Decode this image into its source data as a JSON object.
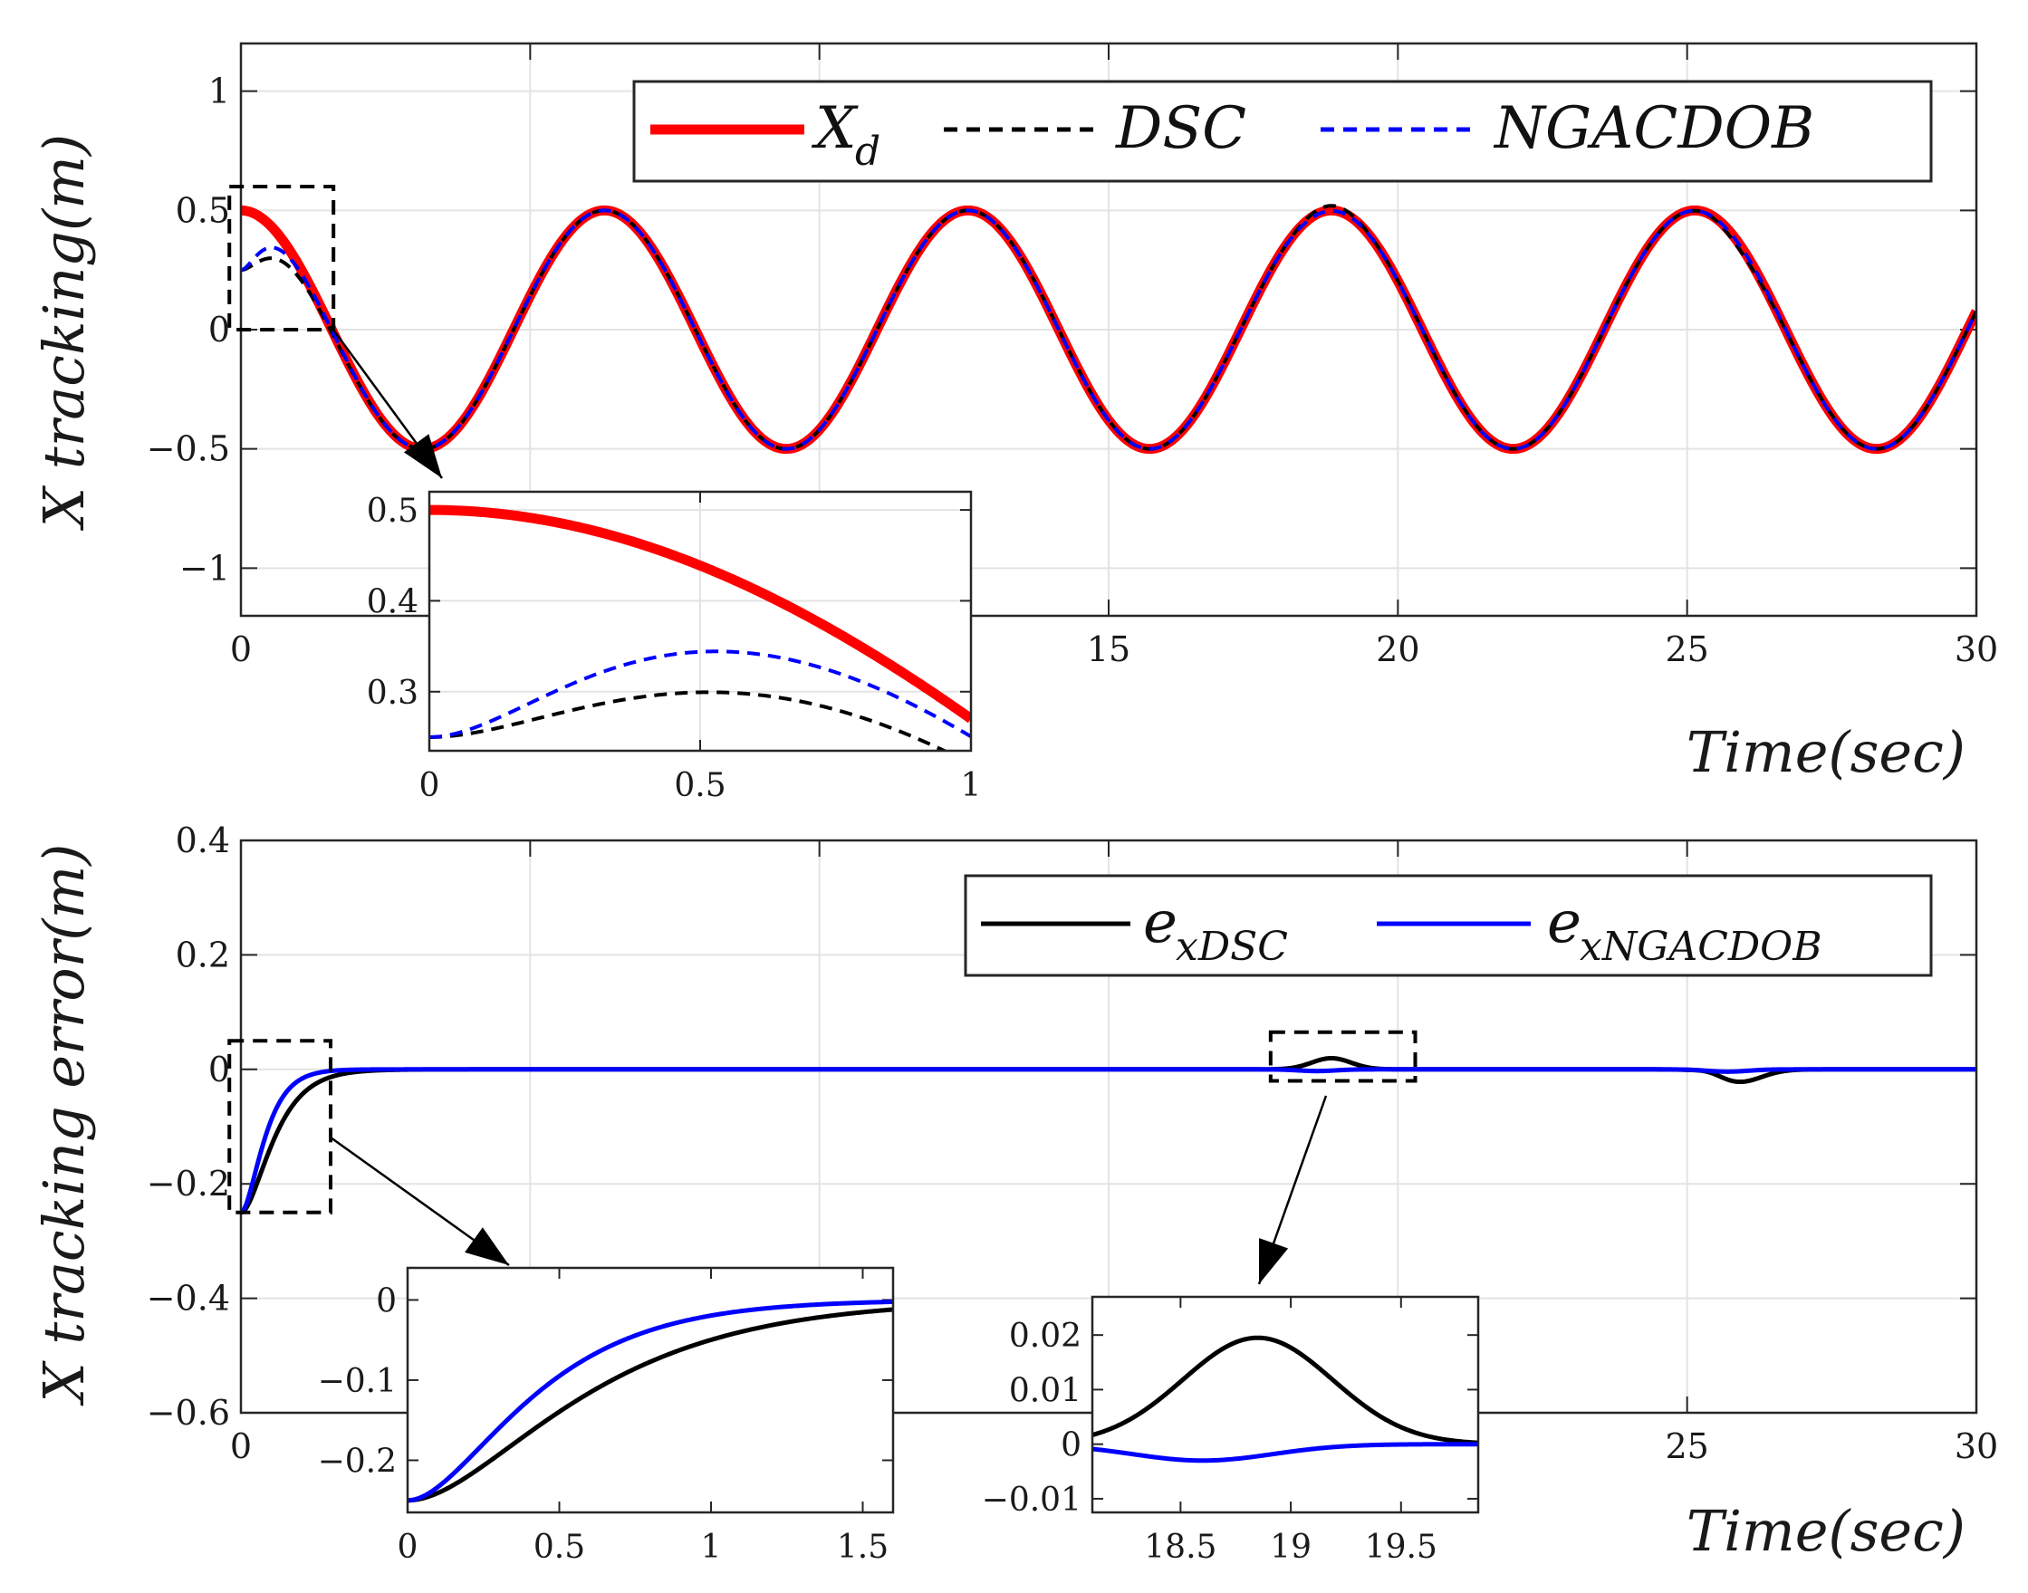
{
  "chart_data": [
    {
      "id": "top",
      "type": "line",
      "xlabel": "Time(sec)",
      "ylabel": "X tracking(m)",
      "xlim": [
        0,
        30
      ],
      "ylim": [
        -1.2,
        1.2
      ],
      "xticks": [
        0,
        5,
        10,
        15,
        20,
        25,
        30
      ],
      "xtick_labels": [
        "0",
        "",
        "",
        "15",
        "20",
        "25",
        "30"
      ],
      "yticks": [
        1,
        0.5,
        0,
        -0.5,
        -1
      ],
      "ytick_labels": [
        "1",
        "0.5",
        "0",
        "−0.5",
        "−1"
      ],
      "grid": true,
      "legend": {
        "placement": "top-right",
        "entries": [
          {
            "name": "X",
            "subscript": "d",
            "color": "#ff0000",
            "style": "solid"
          },
          {
            "name": "DSC",
            "color": "#000000",
            "style": "dashed"
          },
          {
            "name": "NGACDOB",
            "color": "#0000ff",
            "style": "dashed"
          }
        ]
      },
      "series": [
        {
          "name": "X_d",
          "model": "0.5*cos(t)",
          "color": "#ff0000",
          "points": 0
        },
        {
          "name": "DSC",
          "model": "0.5*cos(t) - 0.25*exp(-3t)*(1+3t) + bumps(+0.018 at 18.85, -0.022 at 25.9)",
          "color": "#000000"
        },
        {
          "name": "NGACDOB",
          "model": "0.5*cos(t) - 0.25*exp(-4.2t)*(1+4.2t) + bump(-0.003 at 18.6)",
          "color": "#0000ff"
        }
      ],
      "inset": {
        "xlim": [
          0,
          1
        ],
        "ylim": [
          0.235,
          0.52
        ],
        "xticks": [
          0,
          0.5,
          1
        ],
        "xtick_labels": [
          "0",
          "0.5",
          "1"
        ],
        "yticks": [
          0.5,
          0.4,
          0.3
        ],
        "ytick_labels": [
          "0.5",
          "0.4",
          "0.3"
        ],
        "zoom_box": {
          "x": [
            -0.2,
            1.6
          ],
          "y": [
            0.0,
            0.6
          ]
        }
      }
    },
    {
      "id": "bottom",
      "type": "line",
      "xlabel": "Time(sec)",
      "ylabel": "X tracking error(m)",
      "xlim": [
        0,
        30
      ],
      "ylim": [
        -0.6,
        0.4
      ],
      "xticks": [
        0,
        5,
        10,
        15,
        20,
        25,
        30
      ],
      "xtick_labels": [
        "0",
        "",
        "",
        "",
        "",
        "25",
        "30"
      ],
      "yticks": [
        0.4,
        0.2,
        0,
        -0.2,
        -0.4,
        -0.6
      ],
      "ytick_labels": [
        "0.4",
        "0.2",
        "0",
        "−0.2",
        "−0.4",
        "−0.6"
      ],
      "grid": true,
      "legend": {
        "placement": "top-right",
        "entries": [
          {
            "name": "e",
            "subscript": "xDSC",
            "color": "#000000",
            "style": "solid"
          },
          {
            "name": "e",
            "subscript": "xNGACDOB",
            "color": "#0000ff",
            "style": "solid"
          }
        ]
      },
      "series": [
        {
          "name": "e_xDSC",
          "color": "#000000"
        },
        {
          "name": "e_xNGACDOB",
          "color": "#0000ff"
        }
      ],
      "insets": [
        {
          "xlim": [
            0,
            1.6
          ],
          "ylim": [
            -0.265,
            0.04
          ],
          "xticks": [
            0,
            0.5,
            1,
            1.5
          ],
          "xtick_labels": [
            "0",
            "0.5",
            "1",
            "1.5"
          ],
          "yticks": [
            0,
            -0.1,
            -0.2
          ],
          "ytick_labels": [
            "0",
            "−0.1",
            "−0.2"
          ],
          "zoom_box": {
            "x": [
              -0.2,
              1.55
            ],
            "y": [
              -0.25,
              0.05
            ]
          }
        },
        {
          "xlim": [
            18.1,
            19.85
          ],
          "ylim": [
            -0.0125,
            0.027
          ],
          "xticks": [
            18.5,
            19,
            19.5
          ],
          "xtick_labels": [
            "18.5",
            "19",
            "19.5"
          ],
          "yticks": [
            0.02,
            0.01,
            0,
            -0.01
          ],
          "ytick_labels": [
            "0.02",
            "0.01",
            "0",
            "−0.01"
          ],
          "zoom_box": {
            "x": [
              17.8,
              20.3
            ],
            "y": [
              -0.02,
              0.065
            ]
          }
        }
      ]
    }
  ]
}
